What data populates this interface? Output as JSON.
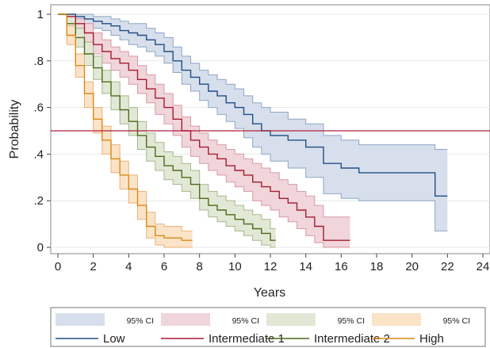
{
  "chart_data": {
    "type": "line",
    "title": "",
    "xlabel": "Years",
    "ylabel": "Probability",
    "xlim": [
      0,
      24
    ],
    "ylim": [
      0,
      1
    ],
    "xticks": [
      0,
      2,
      4,
      6,
      8,
      10,
      12,
      14,
      16,
      18,
      20,
      22,
      24
    ],
    "xtick_labels": [
      "0",
      "2",
      "4",
      "6",
      "8",
      "10",
      "12",
      "14",
      "16",
      "18",
      "20",
      "22",
      "24"
    ],
    "yticks": [
      0,
      0.2,
      0.4,
      0.6,
      0.8,
      1
    ],
    "ytick_labels": [
      "0",
      ".2",
      ".4",
      ".6",
      ".8",
      "1"
    ],
    "grid": "horizontal",
    "reference_line": {
      "y": 0.5,
      "color": "#b0203a"
    },
    "legend_placement": "bottom",
    "ci_label": "95% CI",
    "series": [
      {
        "name": "Low",
        "color": "#1f4e85",
        "ci_color": "#d7dfec",
        "ci_edge": "#8ea5c5",
        "x": [
          0,
          0.5,
          1,
          1.5,
          2,
          2.5,
          3,
          3.5,
          4,
          4.5,
          5,
          5.5,
          6,
          6.5,
          7,
          7.5,
          8,
          8.5,
          9,
          9.5,
          10,
          10.5,
          11,
          11.5,
          12,
          13,
          14,
          15,
          16,
          17,
          18,
          19,
          20,
          21.3,
          22
        ],
        "y": [
          1,
          1,
          0.99,
          0.98,
          0.97,
          0.96,
          0.95,
          0.93,
          0.92,
          0.91,
          0.89,
          0.87,
          0.84,
          0.8,
          0.76,
          0.73,
          0.7,
          0.67,
          0.65,
          0.62,
          0.6,
          0.57,
          0.53,
          0.5,
          0.48,
          0.46,
          0.43,
          0.36,
          0.34,
          0.32,
          0.32,
          0.32,
          0.32,
          0.22,
          0.22
        ],
        "lower": [
          1,
          0.99,
          0.98,
          0.96,
          0.94,
          0.93,
          0.91,
          0.89,
          0.87,
          0.86,
          0.84,
          0.82,
          0.79,
          0.75,
          0.7,
          0.67,
          0.63,
          0.6,
          0.57,
          0.54,
          0.51,
          0.47,
          0.43,
          0.4,
          0.37,
          0.34,
          0.3,
          0.23,
          0.21,
          0.2,
          0.2,
          0.2,
          0.2,
          0.07,
          0.07
        ],
        "upper": [
          1,
          1,
          1,
          1,
          0.99,
          0.99,
          0.98,
          0.97,
          0.96,
          0.96,
          0.94,
          0.92,
          0.9,
          0.86,
          0.82,
          0.79,
          0.76,
          0.74,
          0.72,
          0.7,
          0.68,
          0.65,
          0.62,
          0.6,
          0.58,
          0.55,
          0.53,
          0.48,
          0.46,
          0.44,
          0.44,
          0.44,
          0.44,
          0.42,
          0.42
        ]
      },
      {
        "name": "Intermediate 1",
        "color": "#a51c30",
        "ci_color": "#f0d5da",
        "ci_edge": "#d89aa5",
        "x": [
          0,
          0.5,
          1,
          1.5,
          2,
          2.5,
          3,
          3.5,
          4,
          4.5,
          5,
          5.5,
          6,
          6.5,
          7,
          7.5,
          8,
          8.5,
          9,
          9.5,
          10,
          10.5,
          11,
          11.5,
          12,
          12.5,
          13,
          13.5,
          14,
          14.5,
          15,
          16.5
        ],
        "y": [
          1,
          0.99,
          0.96,
          0.92,
          0.87,
          0.84,
          0.81,
          0.79,
          0.76,
          0.72,
          0.68,
          0.64,
          0.6,
          0.55,
          0.5,
          0.46,
          0.43,
          0.4,
          0.38,
          0.35,
          0.33,
          0.31,
          0.28,
          0.26,
          0.24,
          0.21,
          0.19,
          0.16,
          0.13,
          0.09,
          0.03,
          0.03
        ],
        "lower": [
          1,
          0.97,
          0.93,
          0.88,
          0.83,
          0.79,
          0.76,
          0.73,
          0.7,
          0.66,
          0.62,
          0.57,
          0.53,
          0.48,
          0.43,
          0.39,
          0.36,
          0.33,
          0.31,
          0.28,
          0.26,
          0.24,
          0.2,
          0.18,
          0.16,
          0.13,
          0.11,
          0.08,
          0.05,
          0.02,
          0,
          0
        ],
        "upper": [
          1,
          1,
          0.98,
          0.96,
          0.92,
          0.89,
          0.86,
          0.84,
          0.82,
          0.78,
          0.74,
          0.7,
          0.66,
          0.61,
          0.56,
          0.52,
          0.49,
          0.46,
          0.44,
          0.42,
          0.4,
          0.38,
          0.36,
          0.34,
          0.32,
          0.29,
          0.27,
          0.24,
          0.22,
          0.18,
          0.13,
          0.13
        ]
      },
      {
        "name": "Intermediate 2",
        "color": "#4f6b1a",
        "ci_color": "#e2e8d6",
        "ci_edge": "#a6b88c",
        "x": [
          0,
          0.5,
          1,
          1.5,
          2,
          2.5,
          3,
          3.5,
          4,
          4.5,
          5,
          5.5,
          6,
          6.5,
          7,
          7.5,
          8,
          8.5,
          9,
          9.5,
          10,
          10.5,
          11,
          11.5,
          12,
          12.3
        ],
        "y": [
          1,
          0.96,
          0.9,
          0.83,
          0.77,
          0.71,
          0.65,
          0.59,
          0.54,
          0.48,
          0.43,
          0.39,
          0.35,
          0.33,
          0.3,
          0.27,
          0.21,
          0.18,
          0.16,
          0.14,
          0.12,
          0.1,
          0.08,
          0.06,
          0.03,
          0.03
        ],
        "lower": [
          1,
          0.93,
          0.86,
          0.78,
          0.72,
          0.66,
          0.59,
          0.53,
          0.48,
          0.42,
          0.37,
          0.33,
          0.29,
          0.27,
          0.24,
          0.21,
          0.16,
          0.13,
          0.11,
          0.09,
          0.07,
          0.05,
          0.03,
          0.01,
          0,
          0
        ],
        "upper": [
          1,
          0.99,
          0.94,
          0.88,
          0.82,
          0.76,
          0.71,
          0.65,
          0.6,
          0.54,
          0.49,
          0.45,
          0.41,
          0.39,
          0.36,
          0.33,
          0.27,
          0.24,
          0.22,
          0.2,
          0.18,
          0.16,
          0.14,
          0.12,
          0.08,
          0.08
        ]
      },
      {
        "name": "High",
        "color": "#d98a14",
        "ci_color": "#fbe3c8",
        "ci_edge": "#eab27a",
        "x": [
          0,
          0.5,
          1,
          1.5,
          2,
          2.5,
          3,
          3.5,
          4,
          4.5,
          5,
          5.5,
          6,
          6.5,
          7,
          7.6
        ],
        "y": [
          1,
          0.91,
          0.78,
          0.66,
          0.55,
          0.46,
          0.38,
          0.31,
          0.25,
          0.18,
          0.09,
          0.05,
          0.04,
          0.04,
          0.03,
          0.03
        ],
        "lower": [
          1,
          0.87,
          0.73,
          0.6,
          0.49,
          0.4,
          0.32,
          0.25,
          0.19,
          0.12,
          0.04,
          0.01,
          0,
          0,
          0,
          0
        ],
        "upper": [
          1,
          0.95,
          0.83,
          0.71,
          0.6,
          0.52,
          0.44,
          0.37,
          0.31,
          0.24,
          0.15,
          0.1,
          0.09,
          0.09,
          0.07,
          0.07
        ]
      }
    ]
  }
}
